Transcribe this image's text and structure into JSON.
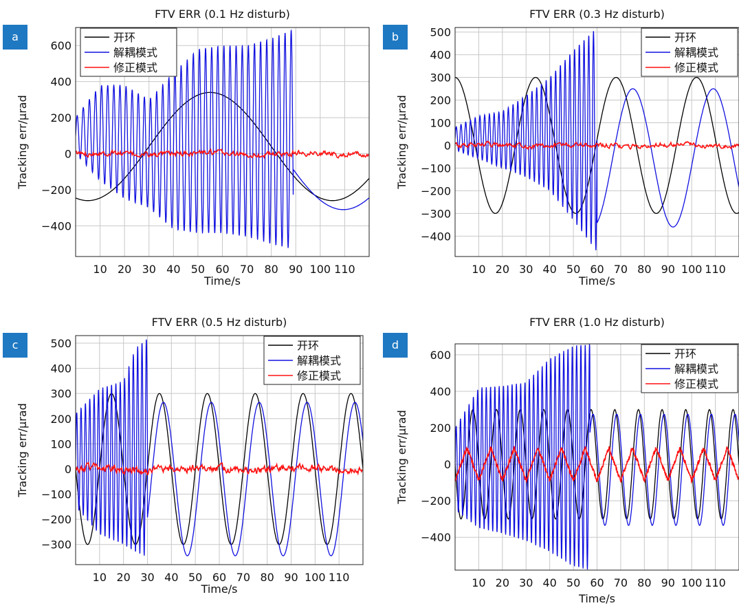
{
  "chart_data": [
    {
      "panel": "a",
      "type": "line",
      "title": "FTV ERR (0.1 Hz disturb)",
      "xlabel": "Time/s",
      "ylabel": "Tracking err/μrad",
      "xlim": [
        0,
        120
      ],
      "ylim": [
        -570,
        700
      ],
      "xticks": [
        10,
        20,
        30,
        40,
        50,
        60,
        70,
        80,
        90,
        100,
        110
      ],
      "xtick_labels": [
        "10",
        "20",
        "30",
        "40",
        "50",
        "60",
        "70",
        "80",
        "90",
        "100",
        "110"
      ],
      "yticks": [
        -400,
        -200,
        0,
        200,
        400,
        600
      ],
      "ytick_labels": [
        "−400",
        "−200",
        "0",
        "200",
        "400",
        "600"
      ],
      "grid": true,
      "legend_position": "top-left",
      "series": [
        {
          "name": "开环",
          "color": "#000000",
          "kind": "sine",
          "amp": 300,
          "freq": 0.01,
          "phase_deg": 252,
          "offset": 40,
          "x": [
            0,
            120
          ]
        },
        {
          "name": "解耦模式",
          "color": "#1010e0",
          "kind": "oscillation",
          "freq": 0.4,
          "x": [
            0,
            89
          ],
          "envelope_x": [
            0,
            10,
            20,
            30,
            40,
            50,
            60,
            70,
            80,
            89
          ],
          "envelope_max": [
            200,
            380,
            380,
            300,
            450,
            580,
            600,
            600,
            640,
            690
          ],
          "envelope_min": [
            0,
            -150,
            -250,
            -300,
            -420,
            -440,
            -440,
            -460,
            -500,
            -530
          ],
          "after_sine": {
            "amp": 310,
            "freq": 0.01,
            "phase_deg": 236,
            "offset": 0,
            "x": [
              89,
              120
            ]
          }
        },
        {
          "name": "修正模式",
          "color": "#ff1010",
          "kind": "noise",
          "center": 0,
          "amp": 15,
          "x": [
            0,
            120
          ]
        }
      ]
    },
    {
      "panel": "b",
      "type": "line",
      "title": "FTV ERR (0.3 Hz disturb)",
      "xlabel": "Time/s",
      "ylabel": "Tracking err/μrad",
      "xlim": [
        0,
        120
      ],
      "ylim": [
        -490,
        520
      ],
      "xticks": [
        10,
        20,
        30,
        40,
        50,
        60,
        70,
        80,
        90,
        100,
        110
      ],
      "xtick_labels": [
        "10",
        "20",
        "30",
        "40",
        "50",
        "60",
        "70",
        "80",
        "90",
        "100",
        "110"
      ],
      "yticks": [
        -400,
        -300,
        -200,
        -100,
        0,
        100,
        200,
        300,
        400,
        500
      ],
      "ytick_labels": [
        "−400",
        "−300",
        "−200",
        "−100",
        "0",
        "100",
        "200",
        "300",
        "400",
        "500"
      ],
      "grid": true,
      "legend_position": "top-right",
      "series": [
        {
          "name": "开环",
          "color": "#000000",
          "kind": "sine",
          "amp": 300,
          "freq": 0.0294,
          "phase_deg": 90,
          "offset": 0,
          "x": [
            0,
            120
          ]
        },
        {
          "name": "解耦模式",
          "color": "#1010e0",
          "kind": "oscillation",
          "freq": 0.5,
          "x": [
            0,
            60
          ],
          "envelope_x": [
            0,
            10,
            20,
            30,
            40,
            50,
            60
          ],
          "envelope_max": [
            80,
            130,
            150,
            220,
            300,
            420,
            520
          ],
          "envelope_min": [
            -20,
            -60,
            -100,
            -140,
            -200,
            -330,
            -470
          ],
          "after_sine": {
            "amp": 305,
            "freq": 0.0294,
            "phase_deg": 15,
            "offset": -55,
            "x": [
              60,
              120
            ]
          }
        },
        {
          "name": "修正模式",
          "color": "#ff1010",
          "kind": "noise",
          "center": 0,
          "amp": 10,
          "x": [
            0,
            120
          ]
        }
      ]
    },
    {
      "panel": "c",
      "type": "line",
      "title": "FTV ERR (0.5 Hz disturb)",
      "xlabel": "Time/s",
      "ylabel": "Tracking err/μrad",
      "xlim": [
        0,
        120
      ],
      "ylim": [
        -380,
        530
      ],
      "xticks": [
        10,
        20,
        30,
        40,
        50,
        60,
        70,
        80,
        90,
        100,
        110
      ],
      "xtick_labels": [
        "10",
        "20",
        "30",
        "40",
        "50",
        "60",
        "70",
        "80",
        "90",
        "100",
        "110"
      ],
      "yticks": [
        -300,
        -200,
        -100,
        0,
        100,
        200,
        300,
        400,
        500
      ],
      "ytick_labels": [
        "−300",
        "−200",
        "−100",
        "0",
        "100",
        "200",
        "300",
        "400",
        "500"
      ],
      "grid": true,
      "legend_position": "top-right",
      "series": [
        {
          "name": "开环",
          "color": "#000000",
          "kind": "sine",
          "amp": 300,
          "freq": 0.05,
          "phase_deg": 180,
          "offset": 0,
          "x": [
            0,
            120
          ]
        },
        {
          "name": "解耦模式",
          "color": "#1010e0",
          "kind": "oscillation",
          "freq": 0.55,
          "x": [
            0,
            30
          ],
          "envelope_x": [
            0,
            10,
            20,
            25,
            30
          ],
          "envelope_max": [
            220,
            320,
            350,
            480,
            520
          ],
          "envelope_min": [
            -150,
            -260,
            -300,
            -330,
            -350
          ],
          "after_sine": {
            "amp": 305,
            "freq": 0.05,
            "phase_deg": 150,
            "offset": -40,
            "x": [
              30,
              120
            ]
          }
        },
        {
          "name": "修正模式",
          "color": "#ff1010",
          "kind": "noise",
          "center": 0,
          "amp": 15,
          "x": [
            0,
            120
          ]
        }
      ]
    },
    {
      "panel": "d",
      "type": "line",
      "title": "FTV ERR (1.0 Hz disturb)",
      "xlabel": "Time/s",
      "ylabel": "Tracking err/μrad",
      "xlim": [
        0,
        120
      ],
      "ylim": [
        -580,
        660
      ],
      "xticks": [
        10,
        20,
        30,
        40,
        50,
        60,
        70,
        80,
        90,
        100,
        110
      ],
      "xtick_labels": [
        "10",
        "20",
        "30",
        "40",
        "50",
        "60",
        "70",
        "80",
        "90",
        "100",
        "110"
      ],
      "yticks": [
        -400,
        -200,
        0,
        200,
        400,
        600
      ],
      "ytick_labels": [
        "−400",
        "−200",
        "0",
        "200",
        "400",
        "600"
      ],
      "grid": true,
      "legend_position": "top-right",
      "series": [
        {
          "name": "开环",
          "color": "#000000",
          "kind": "sine",
          "amp": 300,
          "freq": 0.1,
          "phase_deg": 180,
          "offset": 0,
          "x": [
            0,
            120
          ]
        },
        {
          "name": "解耦模式",
          "color": "#1010e0",
          "kind": "oscillation",
          "freq": 0.55,
          "x": [
            0,
            57
          ],
          "envelope_x": [
            0,
            10,
            20,
            30,
            40,
            50,
            57
          ],
          "envelope_max": [
            200,
            420,
            430,
            450,
            580,
            650,
            660
          ],
          "envelope_min": [
            -250,
            -350,
            -380,
            -420,
            -480,
            -560,
            -580
          ],
          "after_sine": {
            "amp": 305,
            "freq": 0.1,
            "phase_deg": 150,
            "offset": -30,
            "x": [
              57,
              120
            ]
          }
        },
        {
          "name": "修正模式",
          "color": "#ff1010",
          "kind": "triangle",
          "center": 0,
          "amp": 90,
          "freq": 0.1,
          "x": [
            0,
            120
          ]
        }
      ]
    }
  ]
}
